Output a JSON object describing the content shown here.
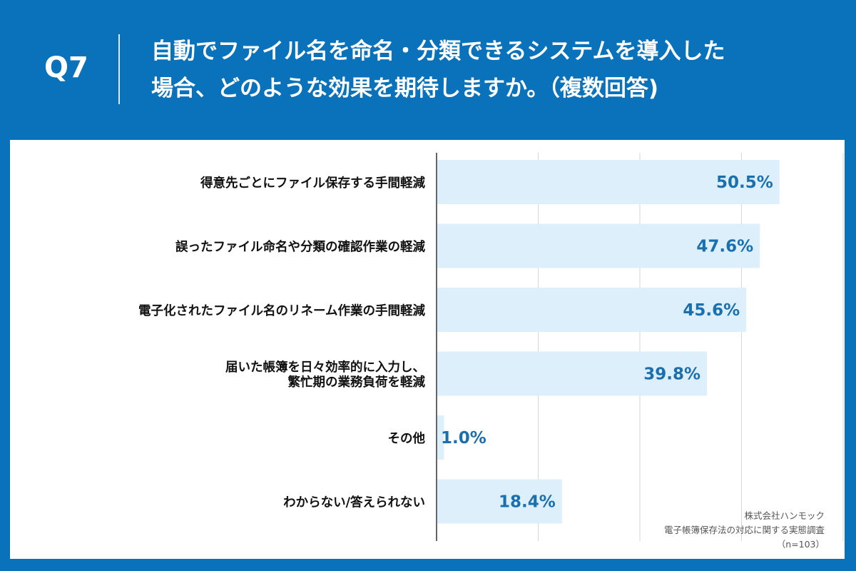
{
  "header": {
    "qnum": "Q7",
    "line1": "自動でファイル名を命名・分類できるシステムを導入した",
    "line2": "場合、どのような効果を期待しますか。（複数回答)"
  },
  "source": {
    "company": "株式会社ハンモック",
    "survey": "電子帳簿保存法の対応に関する実態調査",
    "n": "（n=103）"
  },
  "colors": {
    "background": "#0a72ba",
    "bar": "#ddeffb",
    "value": "#1a6fae",
    "label": "#111111"
  },
  "chart_data": {
    "type": "bar",
    "orientation": "horizontal",
    "categories": [
      [
        "得意先ごとにファイル保存する手間軽減"
      ],
      [
        "誤ったファイル命名や分類の確認作業の軽減"
      ],
      [
        "電子化されたファイル名のリネーム作業の手間軽減"
      ],
      [
        "届いた帳簿を日々効率的に入力し、",
        "繁忙期の業務負荷を軽減"
      ],
      [
        "その他"
      ],
      [
        "わからない/答えられない"
      ]
    ],
    "values": [
      50.5,
      47.6,
      45.6,
      39.8,
      1.0,
      18.4
    ],
    "labels": [
      "50.5%",
      "47.6%",
      "45.6%",
      "39.8%",
      "1.0%",
      "18.4%"
    ],
    "xlim": [
      0,
      60
    ],
    "grid": true
  }
}
